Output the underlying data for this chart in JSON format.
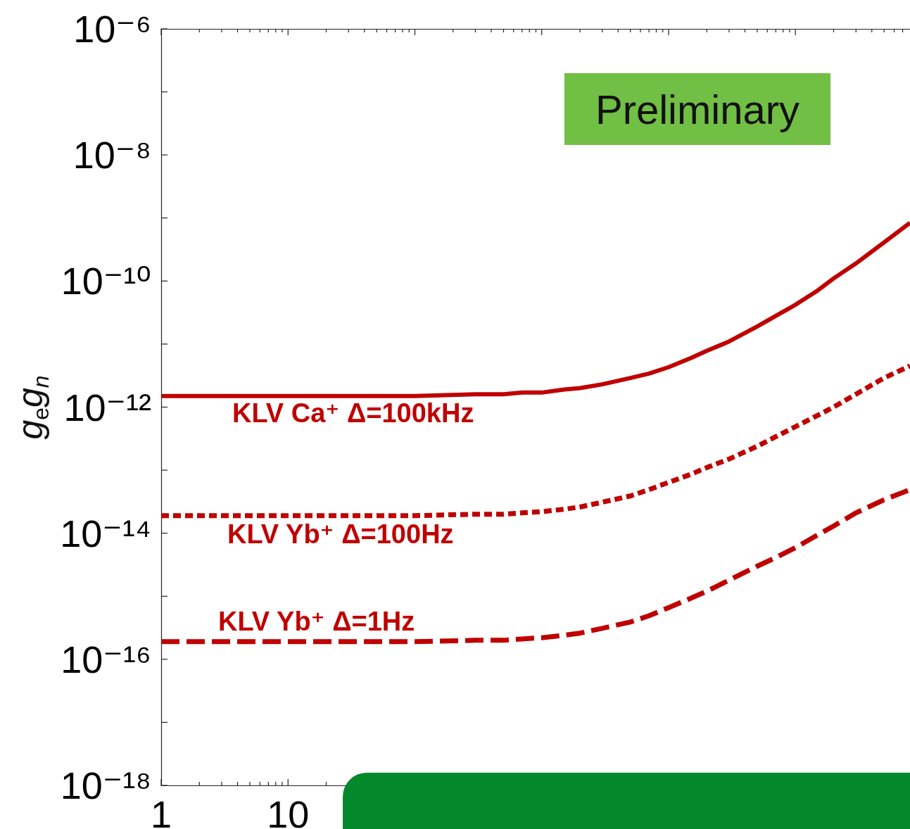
{
  "chart_data": {
    "type": "line",
    "ylabel": "g$_{e}$g$_{n}$",
    "log": "xy",
    "marker": "none",
    "annotations": [
      "Preliminary"
    ],
    "xlim": [
      1,
      800000
    ],
    "xticks": [
      1,
      {
        "value": 2,
        "label": null
      },
      {
        "value": 3,
        "label": null
      },
      {
        "value": 4,
        "label": null
      },
      {
        "value": 5,
        "label": null
      },
      {
        "value": 6,
        "label": null
      },
      {
        "value": 7,
        "label": null
      },
      {
        "value": 8,
        "label": null
      },
      {
        "value": 9,
        "label": null
      },
      10,
      {
        "value": 20,
        "label": null
      },
      {
        "value": 30,
        "label": null
      },
      {
        "value": 40,
        "label": null
      },
      {
        "value": 50,
        "label": null
      },
      {
        "value": 60,
        "label": null
      },
      {
        "value": 70,
        "label": null
      },
      {
        "value": 80,
        "label": null
      },
      {
        "value": 90,
        "label": null
      },
      {
        "value": 100,
        "label": null
      },
      {
        "value": 200,
        "label": null
      },
      {
        "value": 300,
        "label": null
      },
      {
        "value": 400,
        "label": null
      },
      {
        "value": 500,
        "label": null
      },
      {
        "value": 600,
        "label": null
      },
      {
        "value": 700,
        "label": null
      },
      {
        "value": 800,
        "label": null
      },
      {
        "value": 900,
        "label": null
      },
      {
        "value": 1000,
        "label": null
      },
      {
        "value": 2000,
        "label": null
      },
      {
        "value": 3000,
        "label": null
      },
      {
        "value": 4000,
        "label": null
      },
      {
        "value": 5000,
        "label": null
      },
      {
        "value": 6000,
        "label": null
      },
      {
        "value": 7000,
        "label": null
      },
      {
        "value": 8000,
        "label": null
      },
      {
        "value": 9000,
        "label": null
      },
      {
        "value": 10000,
        "label": null
      },
      {
        "value": 20000,
        "label": null
      },
      {
        "value": 30000,
        "label": null
      },
      {
        "value": 40000,
        "label": null
      },
      {
        "value": 50000,
        "label": null
      },
      {
        "value": 60000,
        "label": null
      },
      {
        "value": 70000,
        "label": null
      },
      {
        "value": 80000,
        "label": null
      },
      {
        "value": 90000,
        "label": null
      },
      {
        "value": 100000,
        "label": null
      },
      {
        "value": 200000,
        "label": null
      },
      {
        "value": 300000,
        "label": null
      },
      {
        "value": 400000,
        "label": null
      },
      {
        "value": 500000,
        "label": null
      },
      {
        "value": 600000,
        "label": null
      },
      {
        "value": 700000,
        "label": null
      }
    ],
    "ylim": [
      1e-18,
      1e-06
    ],
    "yticks": [
      {
        "value": 1e-06,
        "label": "10⁻⁶"
      },
      {
        "value": 1e-07,
        "label": null
      },
      {
        "value": 1e-08,
        "label": "10⁻⁸"
      },
      {
        "value": 1e-09,
        "label": null
      },
      {
        "value": 1e-10,
        "label": "10⁻¹⁰"
      },
      {
        "value": 1e-11,
        "label": null
      },
      {
        "value": 1e-12,
        "label": "10⁻¹²"
      },
      {
        "value": 1e-13,
        "label": null
      },
      {
        "value": 1e-14,
        "label": "10⁻¹⁴"
      },
      {
        "value": 1e-15,
        "label": null
      },
      {
        "value": 1e-16,
        "label": "10⁻¹⁶"
      },
      {
        "value": 1e-17,
        "label": null
      },
      {
        "value": 1e-18,
        "label": "10⁻¹⁸"
      }
    ],
    "x": [
      1,
      10,
      100,
      300,
      500,
      700,
      1000,
      1500,
      2000,
      3000,
      5000,
      7000,
      10000,
      15000,
      20000,
      30000,
      50000,
      70000,
      100000,
      150000,
      200000,
      300000,
      500000,
      800000
    ],
    "series": [
      {
        "name": "KLV Ca⁺ Δ=100kHz",
        "color": "#c00000",
        "line_style": "solid",
        "values": [
          1.5e-12,
          1.5e-12,
          1.5e-12,
          1.6e-12,
          1.6e-12,
          1.7e-12,
          1.7e-12,
          1.9e-12,
          2e-12,
          2.3e-12,
          2.9e-12,
          3.4e-12,
          4.3e-12,
          6e-12,
          7.8e-12,
          1.1e-11,
          1.9e-11,
          2.8e-11,
          4.2e-11,
          7.1e-11,
          1.1e-10,
          1.9e-10,
          4.1e-10,
          8.4e-10
        ]
      },
      {
        "name": "KLV Yb⁺ Δ=100Hz",
        "color": "#c00000",
        "line_style": "dotted",
        "values": [
          1.9e-14,
          1.9e-14,
          1.9e-14,
          2e-14,
          2e-14,
          2.1e-14,
          2.2e-14,
          2.4e-14,
          2.6e-14,
          3.1e-14,
          3.9e-14,
          4.9e-14,
          6.4e-14,
          8.6e-14,
          1.1e-13,
          1.5e-13,
          2.4e-13,
          3.4e-13,
          4.9e-13,
          7.4e-13,
          1e-12,
          1.6e-12,
          2.9e-12,
          4.5e-12
        ]
      },
      {
        "name": "KLV Yb⁺ Δ=1Hz",
        "color": "#c00000",
        "line_style": "dashed",
        "values": [
          1.9e-16,
          1.9e-16,
          1.9e-16,
          2e-16,
          2e-16,
          2.1e-16,
          2.2e-16,
          2.4e-16,
          2.6e-16,
          3.1e-16,
          3.9e-16,
          4.9e-16,
          6.6e-16,
          9.3e-16,
          1.2e-15,
          1.8e-15,
          3e-15,
          4.1e-15,
          5.9e-15,
          9.4e-15,
          1.3e-14,
          2.1e-14,
          3.4e-14,
          4.9e-14
        ]
      }
    ]
  }
}
